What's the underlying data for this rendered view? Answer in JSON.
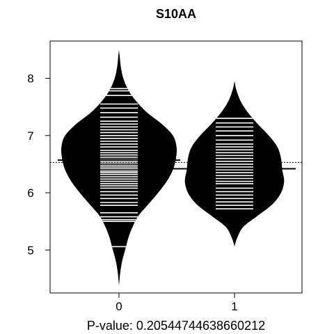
{
  "chart_data": {
    "type": "beanplot",
    "title": "S10AA",
    "xlabel": "P-value: 0.20544744638660212",
    "ylabel": "",
    "categories": [
      "0",
      "1"
    ],
    "ylim": [
      4.25,
      8.65
    ],
    "yticks": [
      5,
      6,
      7,
      8
    ],
    "overall_mean": 6.53,
    "beans": [
      {
        "category": "0",
        "mean": 6.57,
        "range": [
          4.38,
          8.5
        ],
        "density": [
          [
            4.38,
            0.0
          ],
          [
            4.6,
            0.02
          ],
          [
            4.8,
            0.05
          ],
          [
            5.0,
            0.1
          ],
          [
            5.2,
            0.15
          ],
          [
            5.4,
            0.22
          ],
          [
            5.6,
            0.32
          ],
          [
            5.8,
            0.48
          ],
          [
            6.0,
            0.64
          ],
          [
            6.2,
            0.78
          ],
          [
            6.4,
            0.88
          ],
          [
            6.6,
            0.93
          ],
          [
            6.8,
            0.94
          ],
          [
            7.0,
            0.88
          ],
          [
            7.2,
            0.7
          ],
          [
            7.4,
            0.46
          ],
          [
            7.6,
            0.28
          ],
          [
            7.8,
            0.15
          ],
          [
            8.0,
            0.07
          ],
          [
            8.2,
            0.03
          ],
          [
            8.4,
            0.01
          ],
          [
            8.5,
            0.0
          ]
        ],
        "points": [
          5.06,
          5.5,
          5.53,
          5.58,
          5.65,
          5.78,
          5.83,
          5.9,
          5.96,
          6.02,
          6.08,
          6.12,
          6.16,
          6.2,
          6.24,
          6.28,
          6.32,
          6.35,
          6.38,
          6.42,
          6.45,
          6.48,
          6.52,
          6.55,
          6.58,
          6.62,
          6.66,
          6.7,
          6.74,
          6.8,
          6.85,
          6.9,
          6.95,
          7.0,
          7.05,
          7.1,
          7.15,
          7.2,
          7.25,
          7.32,
          7.4,
          7.48,
          7.55,
          7.7,
          7.78,
          7.82
        ]
      },
      {
        "category": "1",
        "mean": 6.42,
        "range": [
          5.06,
          7.95
        ],
        "density": [
          [
            5.06,
            0.0
          ],
          [
            5.2,
            0.04
          ],
          [
            5.4,
            0.14
          ],
          [
            5.6,
            0.38
          ],
          [
            5.8,
            0.62
          ],
          [
            6.0,
            0.76
          ],
          [
            6.2,
            0.81
          ],
          [
            6.4,
            0.78
          ],
          [
            6.6,
            0.76
          ],
          [
            6.8,
            0.7
          ],
          [
            7.0,
            0.56
          ],
          [
            7.2,
            0.38
          ],
          [
            7.4,
            0.22
          ],
          [
            7.6,
            0.1
          ],
          [
            7.8,
            0.03
          ],
          [
            7.95,
            0.0
          ]
        ],
        "points": [
          5.72,
          5.78,
          5.84,
          5.9,
          5.96,
          6.02,
          6.08,
          6.16,
          6.2,
          6.25,
          6.3,
          6.35,
          6.4,
          6.45,
          6.5,
          6.55,
          6.6,
          6.65,
          6.7,
          6.75,
          6.8,
          6.85,
          6.92,
          7.0,
          7.08,
          7.15,
          7.22,
          7.3
        ]
      }
    ],
    "colors": {
      "bean_fill": "#000000",
      "point_lines": "#ffffff",
      "mean_line": "#000000",
      "background": "#ffffff"
    }
  }
}
